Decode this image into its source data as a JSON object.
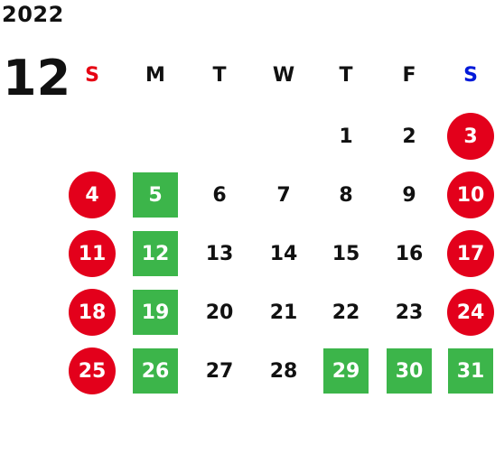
{
  "year": "2022",
  "month": "12",
  "weekday_headers": [
    "S",
    "M",
    "T",
    "W",
    "T",
    "F",
    "S"
  ],
  "colors": {
    "sunday_header": "#e60012",
    "saturday_header": "#0019d9",
    "weekend_circle": "#e3001b",
    "holiday_square": "#3cb54a",
    "text": "#111111"
  },
  "weeks": [
    [
      {
        "day": "",
        "style": "empty"
      },
      {
        "day": "",
        "style": "empty"
      },
      {
        "day": "",
        "style": "empty"
      },
      {
        "day": "",
        "style": "empty"
      },
      {
        "day": "1",
        "style": "normal"
      },
      {
        "day": "2",
        "style": "normal"
      },
      {
        "day": "3",
        "style": "red"
      }
    ],
    [
      {
        "day": "4",
        "style": "red"
      },
      {
        "day": "5",
        "style": "green"
      },
      {
        "day": "6",
        "style": "normal"
      },
      {
        "day": "7",
        "style": "normal"
      },
      {
        "day": "8",
        "style": "normal"
      },
      {
        "day": "9",
        "style": "normal"
      },
      {
        "day": "10",
        "style": "red"
      }
    ],
    [
      {
        "day": "11",
        "style": "red"
      },
      {
        "day": "12",
        "style": "green"
      },
      {
        "day": "13",
        "style": "normal"
      },
      {
        "day": "14",
        "style": "normal"
      },
      {
        "day": "15",
        "style": "normal"
      },
      {
        "day": "16",
        "style": "normal"
      },
      {
        "day": "17",
        "style": "red"
      }
    ],
    [
      {
        "day": "18",
        "style": "red"
      },
      {
        "day": "19",
        "style": "green"
      },
      {
        "day": "20",
        "style": "normal"
      },
      {
        "day": "21",
        "style": "normal"
      },
      {
        "day": "22",
        "style": "normal"
      },
      {
        "day": "23",
        "style": "normal"
      },
      {
        "day": "24",
        "style": "red"
      }
    ],
    [
      {
        "day": "25",
        "style": "red"
      },
      {
        "day": "26",
        "style": "green"
      },
      {
        "day": "27",
        "style": "normal"
      },
      {
        "day": "28",
        "style": "normal"
      },
      {
        "day": "29",
        "style": "green"
      },
      {
        "day": "30",
        "style": "green"
      },
      {
        "day": "31",
        "style": "green"
      }
    ]
  ]
}
